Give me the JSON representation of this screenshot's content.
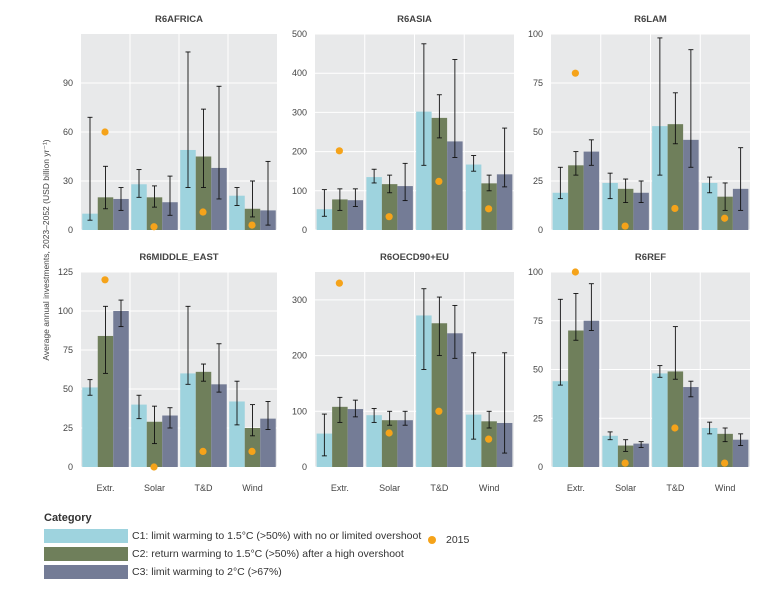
{
  "chart_data": {
    "type": "bar",
    "ylabel": "Average annual investments, 2023–2052 (USD billion yr⁻¹)",
    "categories": [
      "Extr.",
      "Solar",
      "T&D",
      "Wind"
    ],
    "series_names": [
      "C1: limit warming to 1.5°C (>50%) with no or limited overshoot",
      "C2: return warming to 1.5°C (>50%) after a high overshoot",
      "C3: limit warming to 2°C (>67%)"
    ],
    "series_colors": [
      "#9ed3de",
      "#6f7f5b",
      "#747c96"
    ],
    "marker_name": "2015",
    "marker_color": "#f5a31a",
    "legend_title": "Category",
    "panels": [
      {
        "title": "R6AFRICA",
        "ylim": [
          0,
          120
        ],
        "yticks": [
          0,
          30,
          60,
          90
        ],
        "values": [
          [
            10,
            20,
            19
          ],
          [
            28,
            20,
            17
          ],
          [
            49,
            45,
            38
          ],
          [
            21,
            13,
            12
          ]
        ],
        "err_low": [
          [
            6,
            13,
            12
          ],
          [
            20,
            14,
            9
          ],
          [
            26,
            26,
            19
          ],
          [
            15,
            8,
            3
          ]
        ],
        "err_high": [
          [
            69,
            39,
            26
          ],
          [
            37,
            27,
            33
          ],
          [
            109,
            74,
            88
          ],
          [
            26,
            30,
            42
          ]
        ],
        "marker": [
          60,
          2,
          11,
          3
        ]
      },
      {
        "title": "R6ASIA",
        "ylim": [
          0,
          500
        ],
        "yticks": [
          0,
          100,
          200,
          300,
          400,
          500
        ],
        "values": [
          [
            53,
            78,
            76
          ],
          [
            135,
            117,
            112
          ],
          [
            302,
            286,
            226
          ],
          [
            167,
            119,
            142
          ]
        ],
        "err_low": [
          [
            35,
            50,
            60
          ],
          [
            120,
            95,
            75
          ],
          [
            165,
            235,
            185
          ],
          [
            150,
            100,
            110
          ]
        ],
        "err_high": [
          [
            103,
            105,
            105
          ],
          [
            155,
            140,
            170
          ],
          [
            475,
            345,
            435
          ],
          [
            190,
            140,
            260
          ]
        ],
        "marker": [
          202,
          34,
          124,
          54
        ]
      },
      {
        "title": "R6LAM",
        "ylim": [
          0,
          100
        ],
        "yticks": [
          0,
          25,
          50,
          75,
          100
        ],
        "values": [
          [
            19,
            33,
            40
          ],
          [
            24,
            21,
            19
          ],
          [
            53,
            54,
            46
          ],
          [
            24,
            17,
            21
          ]
        ],
        "err_low": [
          [
            16,
            28,
            33
          ],
          [
            16,
            14,
            14
          ],
          [
            28,
            44,
            32
          ],
          [
            19,
            10,
            10
          ]
        ],
        "err_high": [
          [
            32,
            40,
            46
          ],
          [
            29,
            26,
            25
          ],
          [
            98,
            70,
            92
          ],
          [
            27,
            24,
            42
          ]
        ],
        "marker": [
          80,
          2,
          11,
          6
        ]
      },
      {
        "title": "R6MIDDLE_EAST",
        "ylim": [
          0,
          125
        ],
        "yticks": [
          0,
          25,
          50,
          75,
          100,
          125
        ],
        "values": [
          [
            51,
            84,
            100
          ],
          [
            40,
            29,
            33
          ],
          [
            60,
            61,
            53
          ],
          [
            42,
            25,
            31
          ]
        ],
        "err_low": [
          [
            46,
            60,
            90
          ],
          [
            31,
            15,
            25
          ],
          [
            53,
            55,
            48
          ],
          [
            27,
            20,
            24
          ]
        ],
        "err_high": [
          [
            56,
            103,
            107
          ],
          [
            46,
            39,
            38
          ],
          [
            103,
            66,
            79
          ],
          [
            55,
            40,
            42
          ]
        ],
        "marker": [
          120,
          0,
          10,
          10
        ]
      },
      {
        "title": "R6OECD90+EU",
        "ylim": [
          0,
          350
        ],
        "yticks": [
          0,
          100,
          200,
          300
        ],
        "values": [
          [
            60,
            108,
            104
          ],
          [
            93,
            84,
            84
          ],
          [
            272,
            258,
            240
          ],
          [
            94,
            82,
            79
          ]
        ],
        "err_low": [
          [
            20,
            80,
            90
          ],
          [
            80,
            75,
            75
          ],
          [
            175,
            200,
            195
          ],
          [
            50,
            70,
            25
          ]
        ],
        "err_high": [
          [
            95,
            125,
            120
          ],
          [
            105,
            100,
            100
          ],
          [
            320,
            305,
            290
          ],
          [
            205,
            100,
            205
          ]
        ],
        "marker": [
          330,
          61,
          100,
          50
        ]
      },
      {
        "title": "R6REF",
        "ylim": [
          0,
          100
        ],
        "yticks": [
          0,
          25,
          50,
          75,
          100
        ],
        "values": [
          [
            44,
            70,
            75
          ],
          [
            16,
            11,
            12
          ],
          [
            48,
            49,
            41
          ],
          [
            20,
            17,
            14
          ]
        ],
        "err_low": [
          [
            42,
            65,
            70
          ],
          [
            14,
            8,
            10
          ],
          [
            46,
            45,
            36
          ],
          [
            17,
            13,
            11
          ]
        ],
        "err_high": [
          [
            86,
            89,
            94
          ],
          [
            18,
            14,
            13
          ],
          [
            52,
            72,
            44
          ],
          [
            23,
            20,
            17
          ]
        ],
        "marker": [
          100,
          2,
          20,
          2
        ]
      }
    ]
  }
}
